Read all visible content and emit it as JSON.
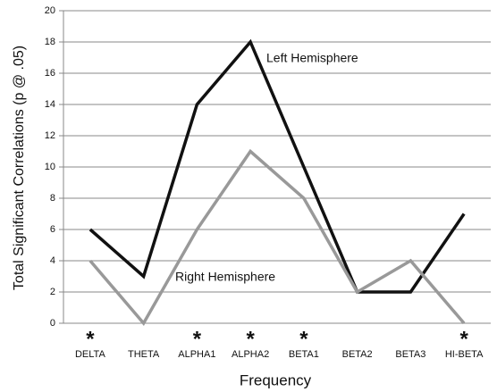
{
  "chart_data": {
    "type": "line",
    "x_label": "Frequency",
    "y_label": "Total Significant Correlations (p @ .05)",
    "categories": [
      "DELTA",
      "THETA",
      "ALPHA1",
      "ALPHA2",
      "BETA1",
      "BETA2",
      "BETA3",
      "HI-BETA"
    ],
    "starred": [
      "*",
      null,
      "*",
      "*",
      "*",
      null,
      null,
      "*"
    ],
    "series": [
      {
        "name": "Left Hemisphere",
        "color": "#111111",
        "values": [
          6,
          3,
          14,
          18,
          10,
          2,
          2,
          7
        ]
      },
      {
        "name": "Right Hemisphere",
        "color": "#999999",
        "values": [
          4,
          0,
          6,
          11,
          8,
          2,
          4,
          0
        ]
      }
    ],
    "ylim": [
      0,
      20
    ],
    "yticks": [
      0,
      2,
      4,
      6,
      8,
      10,
      12,
      14,
      16,
      18,
      20
    ],
    "grid": true
  }
}
